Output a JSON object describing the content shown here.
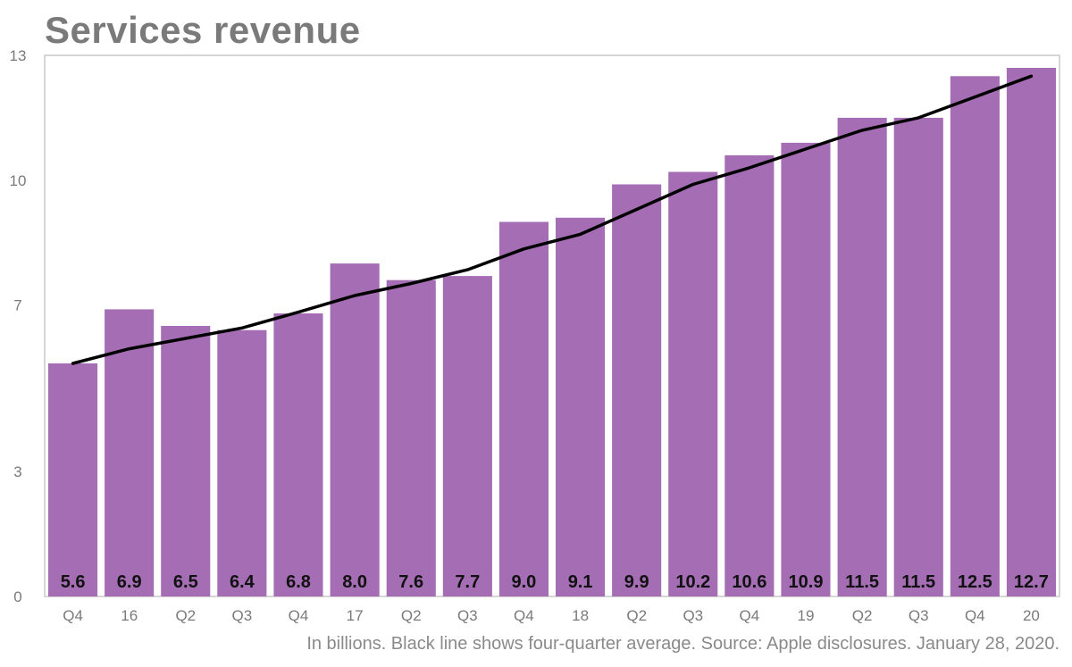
{
  "chart_data": {
    "type": "bar",
    "title": "Services revenue",
    "footnote": "In billions. Black line shows four-quarter average. Source: Apple disclosures. January 28, 2020.",
    "categories": [
      "Q4",
      "16",
      "Q2",
      "Q3",
      "Q4",
      "17",
      "Q2",
      "Q3",
      "Q4",
      "18",
      "Q2",
      "Q3",
      "Q4",
      "19",
      "Q2",
      "Q3",
      "Q4",
      "20"
    ],
    "series": [
      {
        "values": [
          5.6,
          6.9,
          6.5,
          6.4,
          6.8,
          8.0,
          7.6,
          7.7,
          9.0,
          9.1,
          9.9,
          10.2,
          10.6,
          10.9,
          11.5,
          11.5,
          12.5,
          12.7
        ],
        "labels": [
          "5.6",
          "6.9",
          "6.5",
          "6.4",
          "6.8",
          "8.0",
          "7.6",
          "7.7",
          "9.0",
          "9.1",
          "9.9",
          "10.2",
          "10.6",
          "10.9",
          "11.5",
          "11.5",
          "12.5",
          "12.7"
        ],
        "color": "#a56db4"
      }
    ],
    "line": {
      "values": [
        5.6,
        5.95,
        6.2,
        6.45,
        6.83,
        7.23,
        7.52,
        7.85,
        8.35,
        8.7,
        9.3,
        9.9,
        10.3,
        10.75,
        11.2,
        11.5,
        12.0,
        12.5
      ],
      "color": "#000000"
    },
    "yticks": [
      0,
      3,
      7,
      10,
      13
    ],
    "ylim": [
      0,
      13
    ],
    "xlabel": "",
    "ylabel": "",
    "grid": false,
    "legend": "none"
  }
}
